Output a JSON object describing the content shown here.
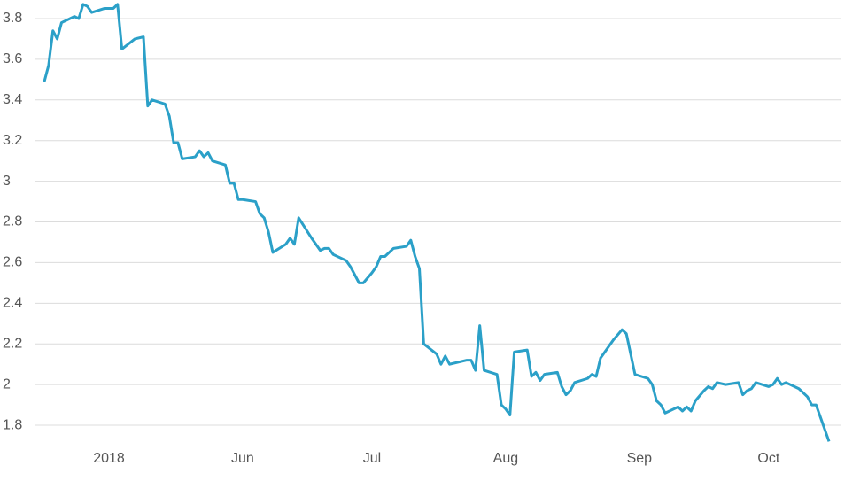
{
  "chart_data": {
    "type": "line",
    "x": [
      -15,
      -14,
      -13,
      -12,
      -11,
      -8,
      -7,
      -6,
      -5,
      -4,
      -1,
      1,
      2,
      3,
      6,
      8,
      9,
      10,
      13,
      14,
      15,
      16,
      17,
      20,
      21,
      22,
      23,
      24,
      27,
      28,
      29,
      30,
      31,
      34,
      35,
      36,
      37,
      38,
      41,
      42,
      43,
      44,
      47,
      49,
      50,
      51,
      52,
      54,
      55,
      56,
      58,
      59,
      61,
      62,
      63,
      64,
      66,
      69,
      70,
      71,
      72,
      73,
      76,
      77,
      78,
      79,
      83,
      84,
      85,
      86,
      87,
      90,
      91,
      92,
      93,
      94,
      97,
      98,
      99,
      100,
      101,
      104,
      105,
      106,
      107,
      108,
      111,
      112,
      113,
      114,
      117,
      119,
      120,
      122,
      125,
      126,
      127,
      128,
      129,
      132,
      133,
      134,
      135,
      136,
      138,
      139,
      140,
      141,
      143,
      146,
      147,
      148,
      149,
      150,
      153,
      154,
      155,
      156,
      157,
      160,
      161,
      162,
      163,
      164,
      167
    ],
    "series": [
      {
        "color": "#2ba0c8",
        "values": [
          3.49,
          3.57,
          3.74,
          3.7,
          3.78,
          3.81,
          3.8,
          3.87,
          3.86,
          3.83,
          3.85,
          3.85,
          3.87,
          3.65,
          3.7,
          3.71,
          3.37,
          3.4,
          3.38,
          3.32,
          3.19,
          3.19,
          3.11,
          3.12,
          3.15,
          3.12,
          3.14,
          3.1,
          3.08,
          2.99,
          2.99,
          2.91,
          2.91,
          2.9,
          2.84,
          2.82,
          2.75,
          2.65,
          2.69,
          2.72,
          2.69,
          2.82,
          2.72,
          2.66,
          2.67,
          2.67,
          2.64,
          2.62,
          2.61,
          2.58,
          2.5,
          2.5,
          2.55,
          2.58,
          2.63,
          2.63,
          2.67,
          2.68,
          2.71,
          2.63,
          2.57,
          2.2,
          2.15,
          2.1,
          2.14,
          2.1,
          2.12,
          2.12,
          2.07,
          2.29,
          2.07,
          2.05,
          1.9,
          1.88,
          1.85,
          2.16,
          2.17,
          2.04,
          2.06,
          2.02,
          2.05,
          2.06,
          1.99,
          1.95,
          1.97,
          2.01,
          2.03,
          2.05,
          2.04,
          2.13,
          2.22,
          2.27,
          2.25,
          2.05,
          2.03,
          2.0,
          1.92,
          1.9,
          1.86,
          1.89,
          1.87,
          1.89,
          1.87,
          1.92,
          1.97,
          1.99,
          1.98,
          2.01,
          2.0,
          2.01,
          1.95,
          1.97,
          1.98,
          2.01,
          1.99,
          2.0,
          2.03,
          2.0,
          2.01,
          1.98,
          1.96,
          1.94,
          1.9,
          1.9,
          1.72
        ]
      }
    ],
    "xlim": [
      -15,
      167
    ],
    "xticks": [
      {
        "value": 0,
        "label": "2018"
      },
      {
        "value": 31,
        "label": "Jun"
      },
      {
        "value": 61,
        "label": "Jul"
      },
      {
        "value": 92,
        "label": "Aug"
      },
      {
        "value": 123,
        "label": "Sep"
      },
      {
        "value": 153,
        "label": "Oct"
      }
    ],
    "ylim": [
      1.7,
      3.88
    ],
    "yticks": [
      1.8,
      2,
      2.2,
      2.4,
      2.6,
      2.8,
      3,
      3.2,
      3.4,
      3.6,
      3.8
    ],
    "grid": true
  }
}
